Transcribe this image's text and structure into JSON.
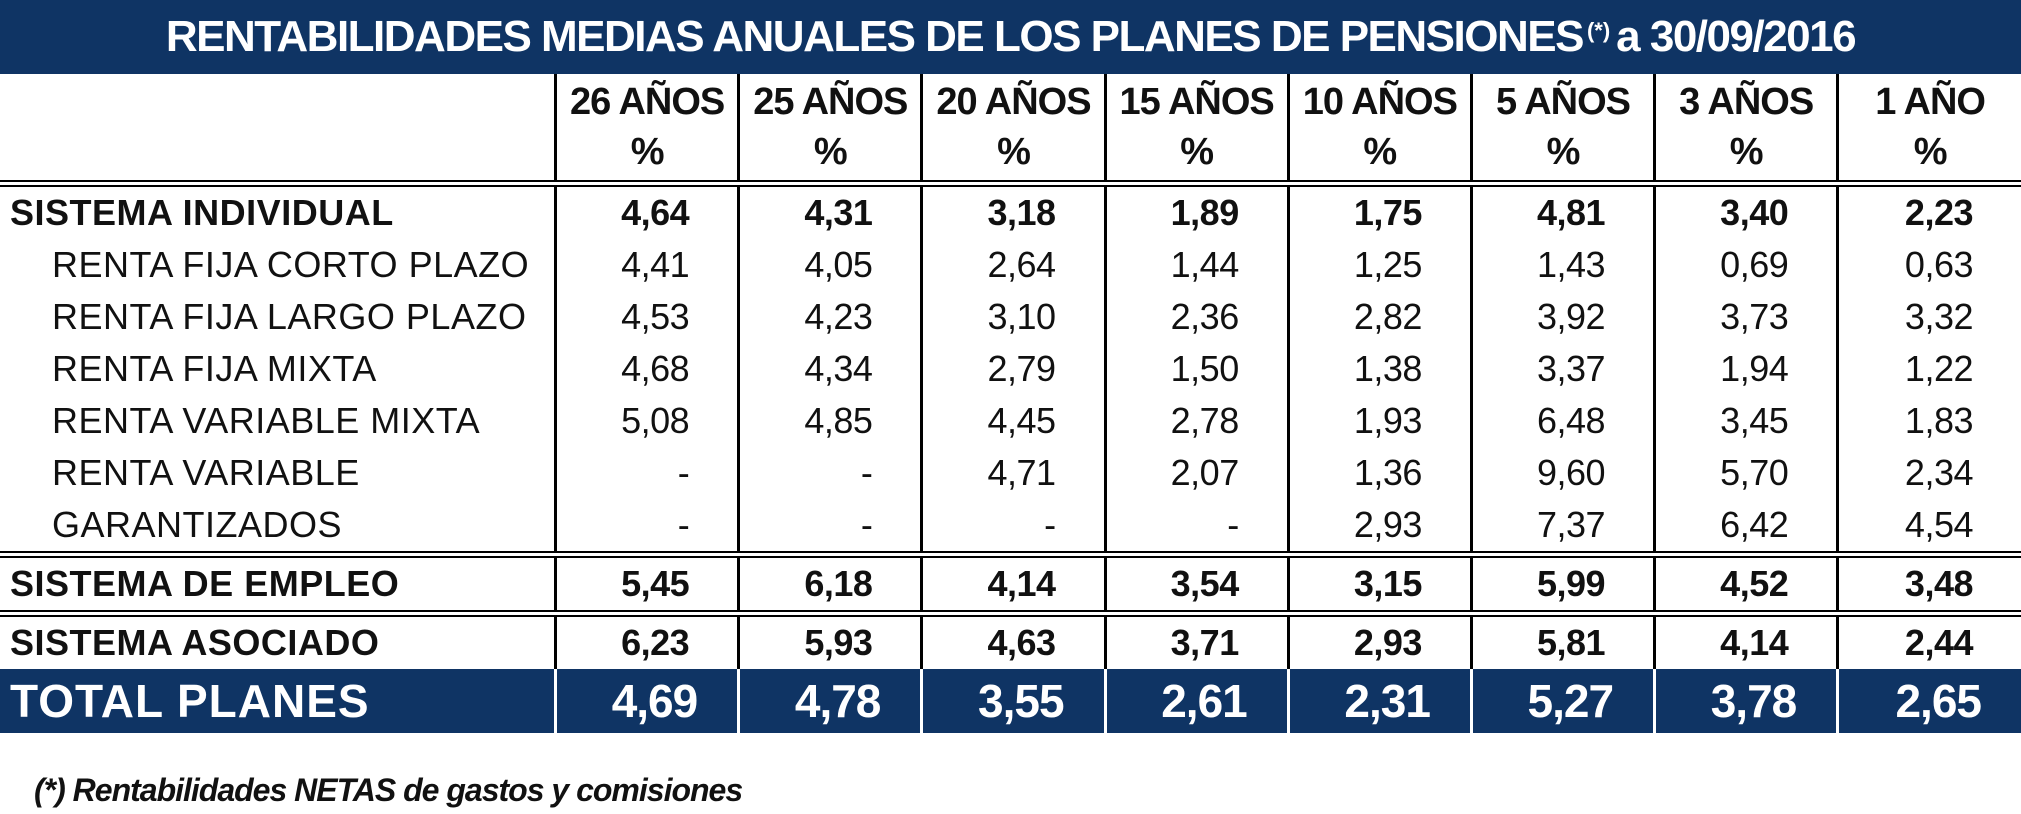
{
  "title": {
    "text": "RENTABILIDADES MEDIAS ANUALES DE LOS PLANES DE PENSIONES",
    "mark": "(*)",
    "date": "a 30/09/2016"
  },
  "columns": [
    {
      "years": "26 AÑOS",
      "unit": "%"
    },
    {
      "years": "25 AÑOS",
      "unit": "%"
    },
    {
      "years": "20 AÑOS",
      "unit": "%"
    },
    {
      "years": "15 AÑOS",
      "unit": "%"
    },
    {
      "years": "10 AÑOS",
      "unit": "%"
    },
    {
      "years": "5 AÑOS",
      "unit": "%"
    },
    {
      "years": "3 AÑOS",
      "unit": "%"
    },
    {
      "years": "1 AÑO",
      "unit": "%"
    }
  ],
  "rows": [
    {
      "label": "SISTEMA INDIVIDUAL",
      "values": [
        "4,64",
        "4,31",
        "3,18",
        "1,89",
        "1,75",
        "4,81",
        "3,40",
        "2,23"
      ]
    },
    {
      "label": "RENTA FIJA CORTO PLAZO",
      "values": [
        "4,41",
        "4,05",
        "2,64",
        "1,44",
        "1,25",
        "1,43",
        "0,69",
        "0,63"
      ]
    },
    {
      "label": "RENTA FIJA LARGO PLAZO",
      "values": [
        "4,53",
        "4,23",
        "3,10",
        "2,36",
        "2,82",
        "3,92",
        "3,73",
        "3,32"
      ]
    },
    {
      "label": "RENTA FIJA MIXTA",
      "values": [
        "4,68",
        "4,34",
        "2,79",
        "1,50",
        "1,38",
        "3,37",
        "1,94",
        "1,22"
      ]
    },
    {
      "label": "RENTA VARIABLE MIXTA",
      "values": [
        "5,08",
        "4,85",
        "4,45",
        "2,78",
        "1,93",
        "6,48",
        "3,45",
        "1,83"
      ]
    },
    {
      "label": "RENTA VARIABLE",
      "values": [
        "-",
        "-",
        "4,71",
        "2,07",
        "1,36",
        "9,60",
        "5,70",
        "2,34"
      ]
    },
    {
      "label": "GARANTIZADOS",
      "values": [
        "-",
        "-",
        "-",
        "-",
        "2,93",
        "7,37",
        "6,42",
        "4,54"
      ]
    },
    {
      "label": "SISTEMA DE EMPLEO",
      "values": [
        "5,45",
        "6,18",
        "4,14",
        "3,54",
        "3,15",
        "5,99",
        "4,52",
        "3,48"
      ]
    },
    {
      "label": "SISTEMA ASOCIADO",
      "values": [
        "6,23",
        "5,93",
        "4,63",
        "3,71",
        "2,93",
        "5,81",
        "4,14",
        "2,44"
      ]
    },
    {
      "label": "TOTAL PLANES",
      "values": [
        "4,69",
        "4,78",
        "3,55",
        "2,61",
        "2,31",
        "5,27",
        "3,78",
        "2,65"
      ]
    }
  ],
  "footnote": "(*) Rentabilidades NETAS de gastos y comisiones",
  "colors": {
    "header_bg": "#0f3464",
    "header_text": "#ffffff",
    "text": "#111111"
  }
}
